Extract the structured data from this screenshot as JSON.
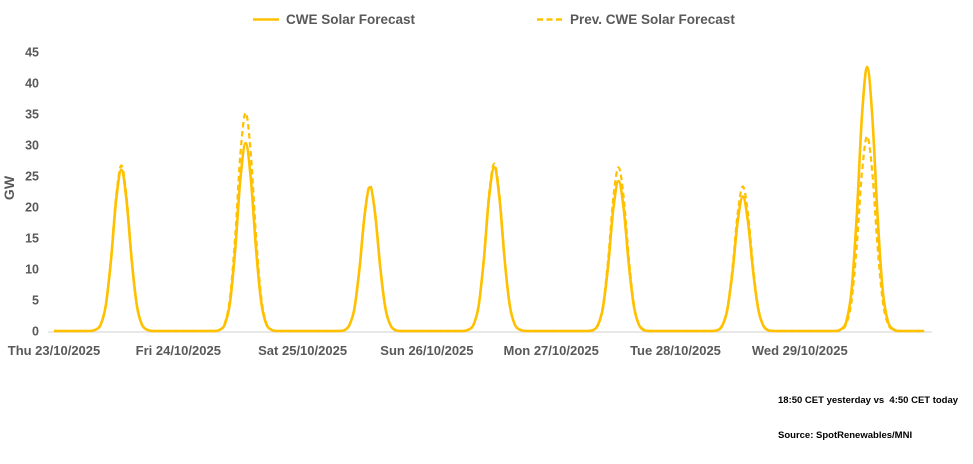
{
  "y_axis_label": "GW",
  "footnotes": {
    "line1": "18:50 CET yesterday vs  4:50 CET today",
    "line2": "Source: SpotRenewables/MNI"
  },
  "colors": {
    "series_yellow": "#FFC000",
    "axis_line_gray": "#D9D9D9",
    "label_text_gray": "#595959",
    "footnote_black": "#000000"
  },
  "chart_data": {
    "type": "line",
    "title": "",
    "xlabel": "",
    "ylabel": "GW",
    "ylim": [
      0,
      45
    ],
    "y_ticks": [
      0,
      5,
      10,
      15,
      20,
      25,
      30,
      35,
      40,
      45
    ],
    "grid": false,
    "legend_position": "top",
    "x_categories": [
      "Thu 23/10/2025",
      "Fri 24/10/2025",
      "Sat 25/10/2025",
      "Sun 26/10/2025",
      "Mon 27/10/2025",
      "Tue 28/10/2025",
      "Wed 29/10/2025"
    ],
    "daylight_hours": [
      8,
      9,
      10,
      11,
      12,
      13,
      14,
      15,
      16,
      17,
      18
    ],
    "series": [
      {
        "name": "CWE Solar Forecast",
        "style": "solid",
        "color": "#FFC000",
        "peaks_gw": [
          26.0,
          30.3,
          23.2,
          26.4,
          24.2,
          21.7,
          42.6
        ],
        "hourly_gw_by_day": [
          [
            0.2,
            1.0,
            4.1,
            11.4,
            21.1,
            26.0,
            21.1,
            11.4,
            4.1,
            1.0,
            0.2
          ],
          [
            0.2,
            1.1,
            4.7,
            13.3,
            24.6,
            30.3,
            24.6,
            13.3,
            4.7,
            1.1,
            0.2
          ],
          [
            0.1,
            0.9,
            3.6,
            10.2,
            18.9,
            23.2,
            18.9,
            10.2,
            3.6,
            0.9,
            0.1
          ],
          [
            0.2,
            1.0,
            4.1,
            11.6,
            21.5,
            26.4,
            21.5,
            11.6,
            4.1,
            1.0,
            0.2
          ],
          [
            0.1,
            0.9,
            3.8,
            10.6,
            19.7,
            24.2,
            19.7,
            10.6,
            3.8,
            0.9,
            0.1
          ],
          [
            0.1,
            0.8,
            3.4,
            9.5,
            17.6,
            21.7,
            17.6,
            9.5,
            3.4,
            0.8,
            0.1
          ],
          [
            0.3,
            1.6,
            6.6,
            18.7,
            34.6,
            42.6,
            34.6,
            18.7,
            6.6,
            1.6,
            0.3
          ]
        ]
      },
      {
        "name": "Prev. CWE Solar Forecast",
        "style": "dashed",
        "color": "#FFC000",
        "peaks_gw": [
          26.7,
          35.2,
          23.5,
          27.0,
          26.4,
          23.3,
          31.4
        ],
        "hourly_gw_by_day": [
          [
            0.2,
            1.0,
            4.2,
            11.7,
            21.7,
            26.7,
            21.7,
            11.7,
            4.2,
            1.0,
            0.2
          ],
          [
            0.2,
            1.3,
            5.5,
            15.4,
            28.6,
            35.2,
            28.6,
            15.4,
            5.5,
            1.3,
            0.2
          ],
          [
            0.1,
            0.9,
            3.7,
            10.3,
            19.1,
            23.5,
            19.1,
            10.3,
            3.7,
            0.9,
            0.1
          ],
          [
            0.2,
            1.0,
            4.2,
            11.8,
            22.0,
            27.0,
            22.0,
            11.8,
            4.2,
            1.0,
            0.2
          ],
          [
            0.2,
            1.0,
            4.1,
            11.6,
            21.5,
            26.4,
            21.5,
            11.6,
            4.1,
            1.0,
            0.2
          ],
          [
            0.1,
            0.9,
            3.6,
            10.2,
            18.9,
            23.3,
            18.9,
            10.2,
            3.6,
            0.9,
            0.1
          ],
          [
            0.2,
            1.2,
            4.9,
            13.8,
            25.5,
            31.4,
            25.5,
            13.8,
            4.9,
            1.2,
            0.2
          ]
        ]
      }
    ]
  }
}
